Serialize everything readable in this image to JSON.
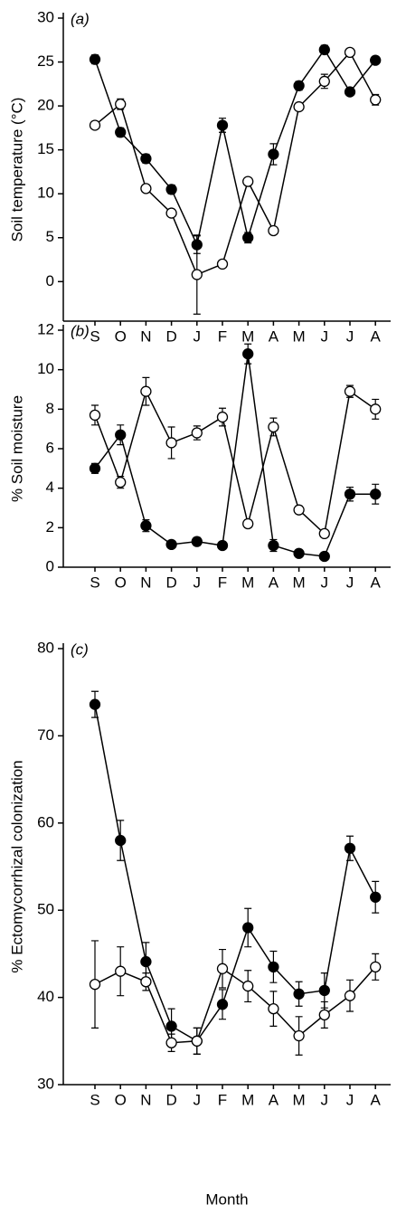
{
  "chart_data": [
    {
      "type": "line",
      "panel_label": "(a)",
      "y_label": "Soil temperature (°C)",
      "categories": [
        "S",
        "O",
        "N",
        "D",
        "J",
        "F",
        "M",
        "A",
        "M",
        "J",
        "J",
        "A"
      ],
      "ylim": [
        -4.5,
        30
      ],
      "yticks": [
        0,
        5,
        10,
        15,
        20,
        25,
        30
      ],
      "series": [
        {
          "color": "#000000",
          "fill": "#000000",
          "values": [
            25.3,
            17,
            14,
            10.5,
            4.2,
            17.8,
            5,
            14.5,
            22.3,
            26.4,
            21.6,
            25.2
          ],
          "errors": [
            0.5,
            0.5,
            0.5,
            0.5,
            1,
            0.8,
            0.6,
            1.2,
            0.5,
            0.5,
            0.3,
            0.3
          ]
        },
        {
          "color": "#000000",
          "fill": "#ffffff",
          "values": [
            17.8,
            20.2,
            10.6,
            7.8,
            0.8,
            2,
            11.4,
            5.8,
            19.9,
            22.8,
            26.1,
            20.7
          ],
          "errors": [
            0,
            0.6,
            0,
            0,
            4.5,
            0,
            0.3,
            0,
            0,
            0.8,
            0,
            0.6
          ]
        }
      ]
    },
    {
      "type": "line",
      "panel_label": "(b)",
      "y_label": "% Soil moisture",
      "categories": [
        "S",
        "O",
        "N",
        "D",
        "J",
        "F",
        "M",
        "A",
        "M",
        "J",
        "J",
        "A"
      ],
      "ylim": [
        0,
        12
      ],
      "yticks": [
        0,
        2,
        4,
        6,
        8,
        10,
        12
      ],
      "series": [
        {
          "color": "#000000",
          "fill": "#000000",
          "values": [
            5,
            6.7,
            2.1,
            1.15,
            1.3,
            1.1,
            10.8,
            1.1,
            0.7,
            0.55,
            3.7,
            3.7
          ],
          "errors": [
            0.25,
            0.5,
            0.3,
            0.1,
            0.2,
            0.1,
            0.5,
            0.3,
            0.1,
            0.1,
            0.35,
            0.5
          ]
        },
        {
          "color": "#000000",
          "fill": "#ffffff",
          "values": [
            7.7,
            4.3,
            8.9,
            6.3,
            6.8,
            7.6,
            2.2,
            7.1,
            2.9,
            1.7,
            8.9,
            8.0
          ],
          "errors": [
            0.5,
            0.3,
            0.7,
            0.8,
            0.35,
            0.45,
            0.2,
            0.45,
            0.2,
            0.1,
            0.3,
            0.5
          ]
        }
      ]
    },
    {
      "type": "line",
      "panel_label": "(c)",
      "y_label": "% Ectomycorrhizal colonization",
      "x_label": "Month",
      "categories": [
        "S",
        "O",
        "N",
        "D",
        "J",
        "F",
        "M",
        "A",
        "M",
        "J",
        "J",
        "A"
      ],
      "ylim": [
        30,
        80
      ],
      "yticks": [
        30,
        40,
        50,
        60,
        70,
        80
      ],
      "series": [
        {
          "color": "#000000",
          "fill": "#000000",
          "values": [
            73.6,
            58,
            44.1,
            36.7,
            35,
            39.2,
            48,
            43.5,
            40.4,
            40.8,
            57.1,
            51.5
          ],
          "errors": [
            1.5,
            2.3,
            2.2,
            2,
            1.5,
            1.7,
            2.2,
            1.8,
            1.4,
            2,
            1.4,
            1.8
          ]
        },
        {
          "color": "#000000",
          "fill": "#ffffff",
          "values": [
            41.5,
            43,
            41.8,
            34.8,
            35,
            43.3,
            41.3,
            38.7,
            35.6,
            38,
            40.2,
            43.5
          ],
          "errors": [
            5,
            2.8,
            1,
            1,
            1.5,
            2.2,
            1.8,
            2,
            2.2,
            1.5,
            1.8,
            1.5
          ]
        }
      ]
    }
  ]
}
